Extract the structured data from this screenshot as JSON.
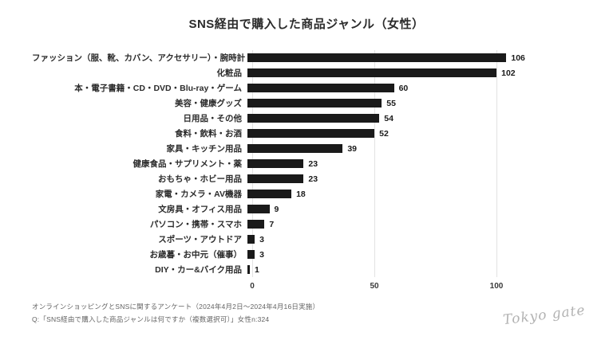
{
  "title": "SNS経由で購入した商品ジャンル（女性）",
  "chart_data": {
    "type": "bar",
    "orientation": "horizontal",
    "title": "SNS経由で購入した商品ジャンル（女性）",
    "categories": [
      "ファッション（服、靴、カバン、アクセサリー）・腕時計",
      "化粧品",
      "本・電子書籍・CD・DVD・Blu-ray・ゲーム",
      "美容・健康グッズ",
      "日用品・その他",
      "食料・飲料・お酒",
      "家具・キッチン用品",
      "健康食品・サプリメント・薬",
      "おもちゃ・ホビー用品",
      "家電・カメラ・AV機器",
      "文房具・オフィス用品",
      "パソコン・携帯・スマホ",
      "スポーツ・アウトドア",
      "お歳暮・お中元（催事）",
      "DIY・カー&バイク用品"
    ],
    "values": [
      106,
      102,
      60,
      55,
      54,
      52,
      39,
      23,
      23,
      18,
      9,
      7,
      3,
      3,
      1
    ],
    "xlabel": "",
    "ylabel": "",
    "xlim": [
      0,
      125
    ],
    "xticks": [
      0,
      50,
      100
    ],
    "grid": true,
    "legend": false,
    "value_labels": true,
    "bar_color": "#1a1a1a",
    "gridline_color": "#e2e2e2"
  },
  "footer": {
    "line1": "オンラインショッピングとSNSに関するアンケート（2024年4月2日～2024年4月16日実施）",
    "line2": "Q:「SNS経由で購入した商品ジャンルは何ですか（複数選択可）」女性n:324"
  },
  "logo": {
    "text": "Tokyo gate"
  }
}
